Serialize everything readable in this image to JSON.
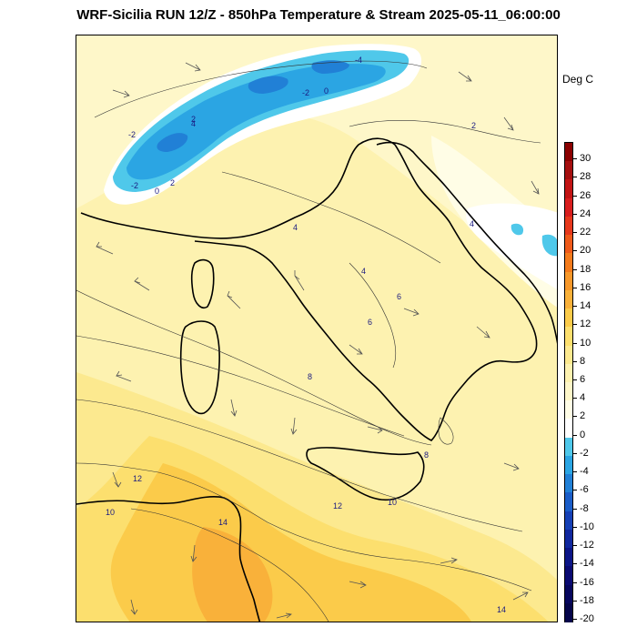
{
  "title": "WRF-Sicilia RUN 12/Z - 850hPa Temperature & Stream 2025-05-11_06:00:00",
  "units_label": "Deg C",
  "colorbar": {
    "levels": [
      "30",
      "28",
      "26",
      "24",
      "22",
      "20",
      "18",
      "16",
      "14",
      "12",
      "10",
      "8",
      "6",
      "4",
      "2",
      "0",
      "-2",
      "-4",
      "-6",
      "-8",
      "-10",
      "-12",
      "-14",
      "-16",
      "-18",
      "-20"
    ],
    "colors": [
      "#8b0000",
      "#a50f0f",
      "#c21414",
      "#d81e1e",
      "#e6381c",
      "#ef5a1a",
      "#f47b1c",
      "#f7982a",
      "#f9b13a",
      "#fbcb4a",
      "#fcdf6e",
      "#fce98f",
      "#fdf2b0",
      "#fef7c9",
      "#fffde6",
      "#ffffff",
      "#4fc8ea",
      "#2ba5e3",
      "#2180d6",
      "#1a5dc8",
      "#1540b5",
      "#10279e",
      "#0b1587",
      "#0a0a72",
      "#07075e",
      "#05054a"
    ]
  },
  "map": {
    "colors": {
      "land_base": "#fdf2b0",
      "warm_light": "#fce98f",
      "warm_mid": "#fcdf6e",
      "warm_high": "#fbcb4a",
      "warm_orange": "#f9b13a",
      "cool_light": "#fef7c9",
      "cold_white": "#ffffff",
      "cold_cyan": "#4fc8ea",
      "cold_blue": "#2ba5e3",
      "cold_deep": "#2180d6"
    },
    "contour_labels": [
      "-4",
      "-2",
      "0",
      "-2",
      "0",
      "2",
      "2",
      "4",
      "-2",
      "2",
      "4",
      "4",
      "4",
      "6",
      "6",
      "8",
      "8",
      "10",
      "10",
      "12",
      "12",
      "14",
      "14"
    ]
  }
}
